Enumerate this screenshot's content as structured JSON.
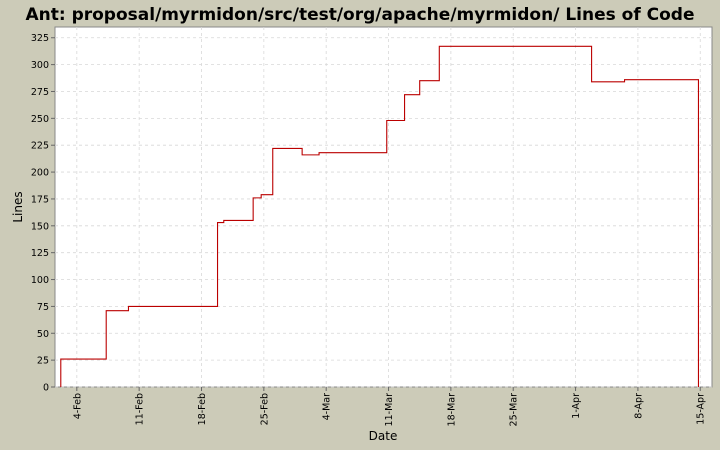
{
  "chart_data": {
    "type": "line",
    "title": "Ant: proposal/myrmidon/src/test/org/apache/myrmidon/ Lines of Code",
    "xlabel": "Date",
    "ylabel": "Lines",
    "ylim": [
      0,
      335
    ],
    "yticks": [
      0,
      25,
      50,
      75,
      100,
      125,
      150,
      175,
      200,
      225,
      250,
      275,
      300,
      325
    ],
    "xlim": [
      -2.45,
      71.32
    ],
    "xticks": [
      {
        "label": "4-Feb",
        "x": 0
      },
      {
        "label": "11-Feb",
        "x": 7
      },
      {
        "label": "18-Feb",
        "x": 14
      },
      {
        "label": "25-Feb",
        "x": 21
      },
      {
        "label": "4-Mar",
        "x": 28
      },
      {
        "label": "11-Mar",
        "x": 35
      },
      {
        "label": "18-Mar",
        "x": 42
      },
      {
        "label": "25-Mar",
        "x": 49
      },
      {
        "label": "1-Apr",
        "x": 56
      },
      {
        "label": "8-Apr",
        "x": 63
      },
      {
        "label": "15-Apr",
        "x": 70
      }
    ],
    "step": true,
    "grid": true,
    "line_color": "#bb0000",
    "series": [
      {
        "x": [
          -1.8,
          -1.8,
          3.3,
          3.3,
          5.8,
          5.8,
          15.8,
          15.8,
          16.5,
          16.5,
          19.8,
          19.8,
          20.7,
          20.7,
          22.0,
          22.0,
          25.3,
          25.3,
          27.2,
          27.2,
          34.8,
          34.8,
          36.8,
          36.8,
          38.5,
          38.5,
          40.7,
          40.7,
          57.8,
          57.8,
          61.5,
          61.5,
          69.8,
          69.8
        ],
        "y": [
          0,
          26,
          26,
          71,
          71,
          75,
          75,
          153,
          153,
          155,
          155,
          176,
          176,
          179,
          179,
          222,
          222,
          216,
          216,
          218,
          218,
          248,
          248,
          272,
          272,
          285,
          285,
          317,
          317,
          284,
          284,
          286,
          286,
          0
        ]
      }
    ]
  }
}
